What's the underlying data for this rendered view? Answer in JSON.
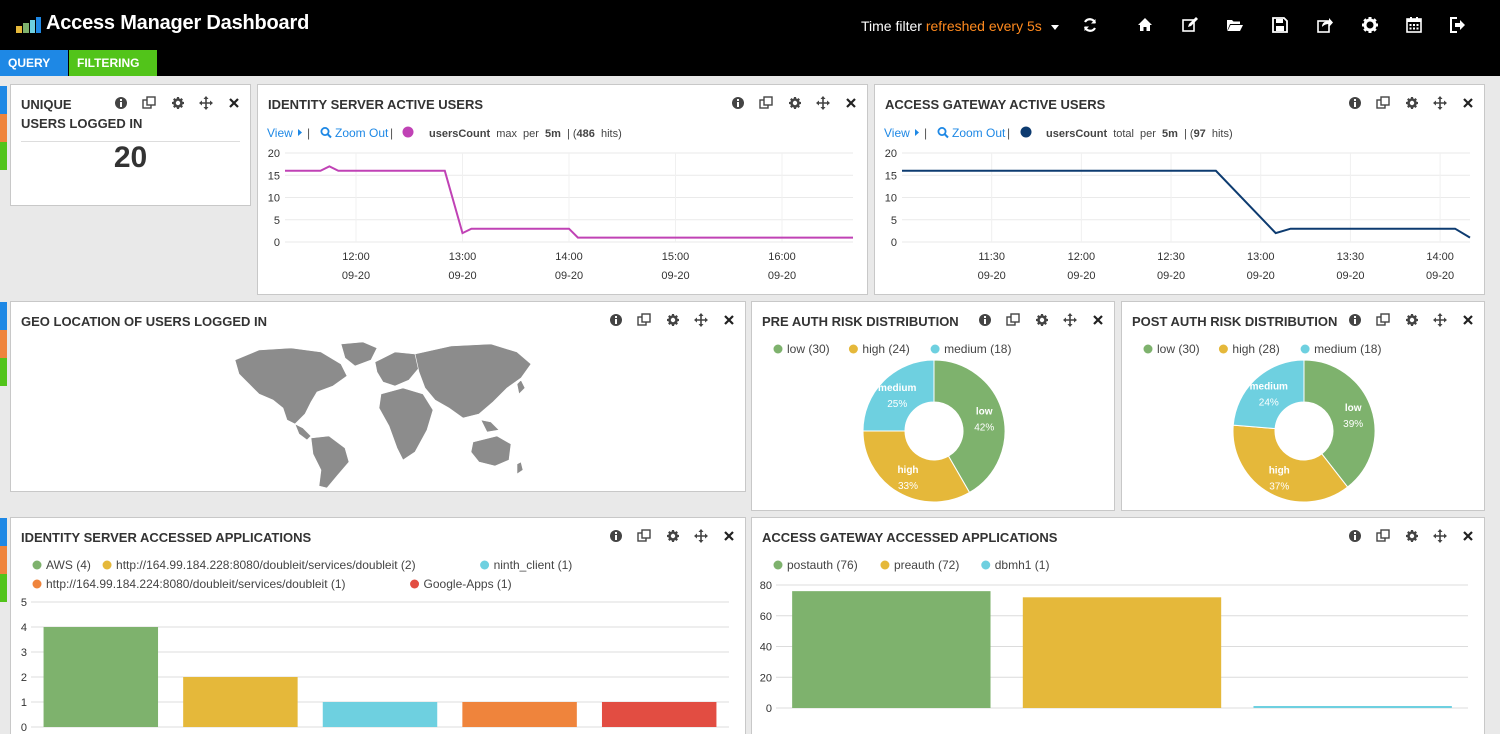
{
  "header": {
    "title": "Access Manager Dashboard",
    "time_filter_label": "Time filter",
    "time_filter_refresh": "refreshed every 5s",
    "nav_icons": [
      "refresh-icon",
      "home-icon",
      "edit-icon",
      "folder-open-icon",
      "save-icon",
      "share-icon",
      "gear-icon",
      "calendar-icon",
      "logout-icon"
    ]
  },
  "subbar": {
    "query_label": "QUERY",
    "filtering_label": "FILTERING"
  },
  "colors": {
    "green": "#7eb26d",
    "yellow": "#e5b83a",
    "cyan": "#6ed0e0",
    "orange": "#ef843c",
    "red": "#e24d42",
    "purple": "#c042b5",
    "navy": "#0d3b70",
    "link": "#1e88e5",
    "row_blue": "#1e88e5",
    "row_orange": "#ef843c",
    "row_green": "#52c41a"
  },
  "panels": {
    "unique_users": {
      "title_line1": "UNIQUE",
      "title_line2": "USERS LOGGED IN",
      "value": "20"
    },
    "is_active_users": {
      "title": "IDENTITY SERVER ACTIVE USERS",
      "view": "View",
      "sep": "|",
      "zoom": "Zoom Out",
      "series": "usersCount",
      "agg": "max",
      "per": "per",
      "interval": "5m",
      "hits": "486",
      "hits_word": "hits"
    },
    "ag_active_users": {
      "title": "ACCESS GATEWAY ACTIVE USERS",
      "view": "View",
      "sep": "|",
      "zoom": "Zoom Out",
      "series": "usersCount",
      "agg": "total",
      "per": "per",
      "interval": "5m",
      "hits": "97",
      "hits_word": "hits"
    },
    "geo": {
      "title": "GEO LOCATION OF USERS LOGGED IN"
    },
    "pre_auth": {
      "title": "PRE AUTH RISK DISTRIBUTION"
    },
    "post_auth": {
      "title": "POST AUTH RISK DISTRIBUTION"
    },
    "is_apps": {
      "title": "IDENTITY SERVER ACCESSED APPLICATIONS"
    },
    "ag_apps": {
      "title": "ACCESS GATEWAY ACCESSED APPLICATIONS"
    }
  },
  "chart_data": [
    {
      "id": "is_active_users",
      "type": "line",
      "series_name": "usersCount",
      "color": "#c042b5",
      "x": [
        "11:20",
        "11:30",
        "11:40",
        "11:45",
        "11:50",
        "12:00",
        "12:10",
        "12:20",
        "12:30",
        "12:40",
        "12:50",
        "13:00",
        "13:05",
        "13:10",
        "13:20",
        "13:30",
        "13:40",
        "13:50",
        "14:00",
        "14:05",
        "14:30",
        "15:00",
        "15:30",
        "16:00",
        "16:30",
        "16:40"
      ],
      "values": [
        16,
        16,
        16,
        17,
        16,
        16,
        16,
        16,
        16,
        16,
        16,
        2,
        3,
        3,
        3,
        3,
        3,
        3,
        3,
        1,
        1,
        1,
        1,
        1,
        1,
        1
      ],
      "xticks": [
        {
          "t": "12:00",
          "l1": "12:00",
          "l2": "09-20"
        },
        {
          "t": "13:00",
          "l1": "13:00",
          "l2": "09-20"
        },
        {
          "t": "14:00",
          "l1": "14:00",
          "l2": "09-20"
        },
        {
          "t": "15:00",
          "l1": "15:00",
          "l2": "09-20"
        },
        {
          "t": "16:00",
          "l1": "16:00",
          "l2": "09-20"
        }
      ],
      "xlim": [
        "11:20",
        "16:40"
      ],
      "ylim": [
        0,
        20
      ],
      "yticks": [
        0,
        5,
        10,
        15,
        20
      ]
    },
    {
      "id": "ag_active_users",
      "type": "line",
      "series_name": "usersCount",
      "color": "#0d3b70",
      "x": [
        "11:00",
        "11:30",
        "12:00",
        "12:30",
        "12:45",
        "13:05",
        "13:10",
        "13:15",
        "13:30",
        "14:00",
        "14:05",
        "14:10"
      ],
      "values": [
        16,
        16,
        16,
        16,
        16,
        2,
        3,
        3,
        3,
        3,
        3,
        1
      ],
      "xticks": [
        {
          "t": "11:30",
          "l1": "11:30",
          "l2": "09-20"
        },
        {
          "t": "12:00",
          "l1": "12:00",
          "l2": "09-20"
        },
        {
          "t": "12:30",
          "l1": "12:30",
          "l2": "09-20"
        },
        {
          "t": "13:00",
          "l1": "13:00",
          "l2": "09-20"
        },
        {
          "t": "13:30",
          "l1": "13:30",
          "l2": "09-20"
        },
        {
          "t": "14:00",
          "l1": "14:00",
          "l2": "09-20"
        }
      ],
      "xlim": [
        "11:00",
        "14:10"
      ],
      "ylim": [
        0,
        20
      ],
      "yticks": [
        0,
        5,
        10,
        15,
        20
      ]
    },
    {
      "id": "pre_auth",
      "type": "pie",
      "title": "PRE AUTH RISK DISTRIBUTION",
      "slices": [
        {
          "name": "low",
          "value": 30,
          "color": "#7eb26d",
          "legend": "low (30)",
          "pct": "42%"
        },
        {
          "name": "high",
          "value": 24,
          "color": "#e5b83a",
          "legend": "high (24)",
          "pct": "33%"
        },
        {
          "name": "medium",
          "value": 18,
          "color": "#6ed0e0",
          "legend": "medium (18)",
          "pct": "25%"
        }
      ]
    },
    {
      "id": "post_auth",
      "type": "pie",
      "title": "POST AUTH RISK DISTRIBUTION",
      "slices": [
        {
          "name": "low",
          "value": 30,
          "color": "#7eb26d",
          "legend": "low (30)",
          "pct": "39%"
        },
        {
          "name": "high",
          "value": 28,
          "color": "#e5b83a",
          "legend": "high (28)",
          "pct": "37%"
        },
        {
          "name": "medium",
          "value": 18,
          "color": "#6ed0e0",
          "legend": "medium (18)",
          "pct": "24%"
        }
      ]
    },
    {
      "id": "is_apps",
      "type": "bar",
      "title": "IDENTITY SERVER ACCESSED APPLICATIONS",
      "categories": [
        "AWS",
        "http://164.99.184.228:8080/doubleit/services/doubleit",
        "ninth_client",
        "http://164.99.184.224:8080/doubleit/services/doubleit",
        "Google-Apps"
      ],
      "legend": [
        "AWS (4)",
        "http://164.99.184.228:8080/doubleit/services/doubleit (2)",
        "ninth_client (1)",
        "http://164.99.184.224:8080/doubleit/services/doubleit (1)",
        "Google-Apps (1)"
      ],
      "values": [
        4,
        2,
        1,
        1,
        1
      ],
      "colors": [
        "#7eb26d",
        "#e5b83a",
        "#6ed0e0",
        "#ef843c",
        "#e24d42"
      ],
      "ylim": [
        0,
        5
      ],
      "yticks": [
        0,
        1,
        2,
        3,
        4,
        5
      ]
    },
    {
      "id": "ag_apps",
      "type": "bar",
      "title": "ACCESS GATEWAY ACCESSED APPLICATIONS",
      "categories": [
        "postauth",
        "preauth",
        "dbmh1"
      ],
      "legend": [
        "postauth (76)",
        "preauth (72)",
        "dbmh1 (1)"
      ],
      "values": [
        76,
        72,
        1
      ],
      "colors": [
        "#7eb26d",
        "#e5b83a",
        "#6ed0e0"
      ],
      "ylim": [
        0,
        80
      ],
      "yticks": [
        0,
        20,
        40,
        60,
        80
      ]
    }
  ]
}
